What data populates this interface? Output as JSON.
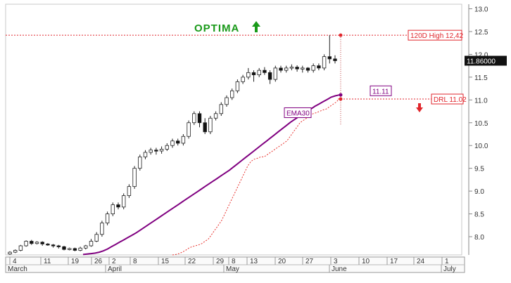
{
  "chart_data": {
    "type": "candlestick",
    "title": "OPTIMA",
    "y_axis": {
      "min": 7.6,
      "max": 13.1,
      "ticks": [
        "13.0",
        "12.5",
        "12.0",
        "11.5",
        "11.0",
        "10.5",
        "10.0",
        "9.5",
        "9.0",
        "8.5",
        "8.0"
      ]
    },
    "x_axis": {
      "day_ticks": [
        "4",
        "11",
        "19",
        "26",
        "2",
        "8",
        "15",
        "22",
        "29",
        "8",
        "13",
        "20",
        "27",
        "3",
        "10",
        "17",
        "24",
        "1"
      ],
      "month_labels": [
        "March",
        "April",
        "May",
        "June",
        "July"
      ]
    },
    "series": [
      {
        "name": "EMA30",
        "values": [
          7.61,
          7.62,
          7.63,
          7.64,
          7.66,
          7.69,
          7.73,
          7.78,
          7.83,
          7.88,
          7.93,
          7.98,
          8.03,
          8.08,
          8.14,
          8.2,
          8.26,
          8.32,
          8.38,
          8.44,
          8.5,
          8.56,
          8.62,
          8.68,
          8.74,
          8.8,
          8.86,
          8.92,
          8.98,
          9.04,
          9.1,
          9.16,
          9.22,
          9.28,
          9.34,
          9.4,
          9.46,
          9.53,
          9.6,
          9.67,
          9.74,
          9.81,
          9.88,
          9.95,
          10.02,
          10.09,
          10.16,
          10.23,
          10.3,
          10.37,
          10.44,
          10.51,
          10.57,
          10.63,
          10.69,
          10.75,
          10.8,
          10.86,
          10.91,
          10.96,
          11.01,
          11.06,
          11.09,
          11.11
        ]
      },
      {
        "name": "DRL",
        "values": [
          7.6,
          7.61,
          7.63,
          7.66,
          7.7,
          7.75,
          7.78,
          7.8,
          7.82,
          7.85,
          7.9,
          7.95,
          8.05,
          8.15,
          8.25,
          8.35,
          8.5,
          8.65,
          8.8,
          8.95,
          9.1,
          9.25,
          9.4,
          9.55,
          9.65,
          9.7,
          9.72,
          9.75,
          9.75,
          9.8,
          9.85,
          9.9,
          9.95,
          10.0,
          10.05,
          10.1,
          10.2,
          10.3,
          10.4,
          10.5,
          10.55,
          10.6,
          10.65,
          10.7,
          10.72,
          10.75,
          10.78,
          10.8,
          10.85,
          10.9,
          10.95,
          11.02
        ]
      }
    ],
    "candles": [
      [
        7.62,
        7.66,
        7.6,
        7.68
      ],
      [
        7.66,
        7.7,
        7.64,
        7.72
      ],
      [
        7.7,
        7.8,
        7.68,
        7.82
      ],
      [
        7.8,
        7.9,
        7.78,
        7.92
      ],
      [
        7.9,
        7.85,
        7.82,
        7.93
      ],
      [
        7.85,
        7.88,
        7.83,
        7.9
      ],
      [
        7.88,
        7.84,
        7.8,
        7.9
      ],
      [
        7.84,
        7.82,
        7.8,
        7.86
      ],
      [
        7.82,
        7.8,
        7.76,
        7.84
      ],
      [
        7.8,
        7.78,
        7.74,
        7.82
      ],
      [
        7.78,
        7.72,
        7.7,
        7.8
      ],
      [
        7.72,
        7.74,
        7.7,
        7.76
      ],
      [
        7.74,
        7.7,
        7.68,
        7.76
      ],
      [
        7.7,
        7.75,
        7.68,
        7.78
      ],
      [
        7.75,
        7.8,
        7.72,
        7.82
      ],
      [
        7.8,
        7.9,
        7.78,
        7.95
      ],
      [
        7.9,
        8.05,
        7.88,
        8.1
      ],
      [
        8.05,
        8.3,
        8.0,
        8.35
      ],
      [
        8.3,
        8.5,
        8.25,
        8.55
      ],
      [
        8.5,
        8.7,
        8.45,
        8.75
      ],
      [
        8.7,
        8.65,
        8.6,
        8.75
      ],
      [
        8.65,
        8.9,
        8.6,
        8.95
      ],
      [
        8.9,
        9.1,
        8.85,
        9.15
      ],
      [
        9.1,
        9.5,
        9.05,
        9.55
      ],
      [
        9.5,
        9.75,
        9.45,
        9.8
      ],
      [
        9.75,
        9.85,
        9.7,
        9.9
      ],
      [
        9.85,
        9.9,
        9.8,
        9.95
      ],
      [
        9.9,
        9.88,
        9.8,
        9.95
      ],
      [
        9.88,
        9.92,
        9.82,
        9.98
      ],
      [
        9.92,
        10.0,
        9.88,
        10.05
      ],
      [
        10.0,
        10.1,
        9.95,
        10.15
      ],
      [
        10.1,
        10.05,
        10.0,
        10.15
      ],
      [
        10.05,
        10.2,
        10.0,
        10.25
      ],
      [
        10.2,
        10.5,
        10.15,
        10.55
      ],
      [
        10.5,
        10.7,
        10.45,
        10.75
      ],
      [
        10.7,
        10.5,
        10.4,
        10.75
      ],
      [
        10.5,
        10.3,
        10.25,
        10.6
      ],
      [
        10.3,
        10.6,
        10.25,
        10.65
      ],
      [
        10.6,
        10.7,
        10.55,
        10.75
      ],
      [
        10.7,
        10.9,
        10.65,
        10.95
      ],
      [
        10.9,
        11.05,
        10.85,
        11.1
      ],
      [
        11.05,
        11.2,
        11.0,
        11.25
      ],
      [
        11.2,
        11.4,
        11.15,
        11.45
      ],
      [
        11.4,
        11.5,
        11.35,
        11.55
      ],
      [
        11.5,
        11.6,
        11.45,
        11.7
      ],
      [
        11.6,
        11.55,
        11.4,
        11.65
      ],
      [
        11.55,
        11.65,
        11.5,
        11.7
      ],
      [
        11.65,
        11.6,
        11.55,
        11.72
      ],
      [
        11.6,
        11.45,
        11.35,
        11.65
      ],
      [
        11.45,
        11.7,
        11.4,
        11.75
      ],
      [
        11.7,
        11.65,
        11.6,
        11.75
      ],
      [
        11.65,
        11.7,
        11.6,
        11.75
      ],
      [
        11.7,
        11.72,
        11.65,
        11.78
      ],
      [
        11.72,
        11.68,
        11.62,
        11.76
      ],
      [
        11.68,
        11.7,
        11.6,
        11.75
      ],
      [
        11.7,
        11.65,
        11.6,
        11.72
      ],
      [
        11.65,
        11.75,
        11.6,
        11.8
      ],
      [
        11.75,
        11.7,
        11.65,
        11.8
      ],
      [
        11.7,
        11.95,
        11.65,
        12.0
      ],
      [
        11.95,
        11.9,
        11.8,
        12.42
      ],
      [
        11.9,
        11.86,
        11.8,
        11.98
      ]
    ],
    "levels": [
      {
        "label": "120D High 12,42",
        "value": 12.42,
        "color": "#e0262c"
      },
      {
        "label": "DRL 11.02",
        "value": 11.02,
        "color": "#e0262c"
      }
    ],
    "price_labels": {
      "last": "11.86000",
      "ema_value": "11.11"
    },
    "colors": {
      "ema": "#800080",
      "drl": "#e8302c",
      "up_arrow": "#1a9a1a",
      "down_arrow": "#e0262c",
      "title": "#1a9a1a"
    }
  }
}
